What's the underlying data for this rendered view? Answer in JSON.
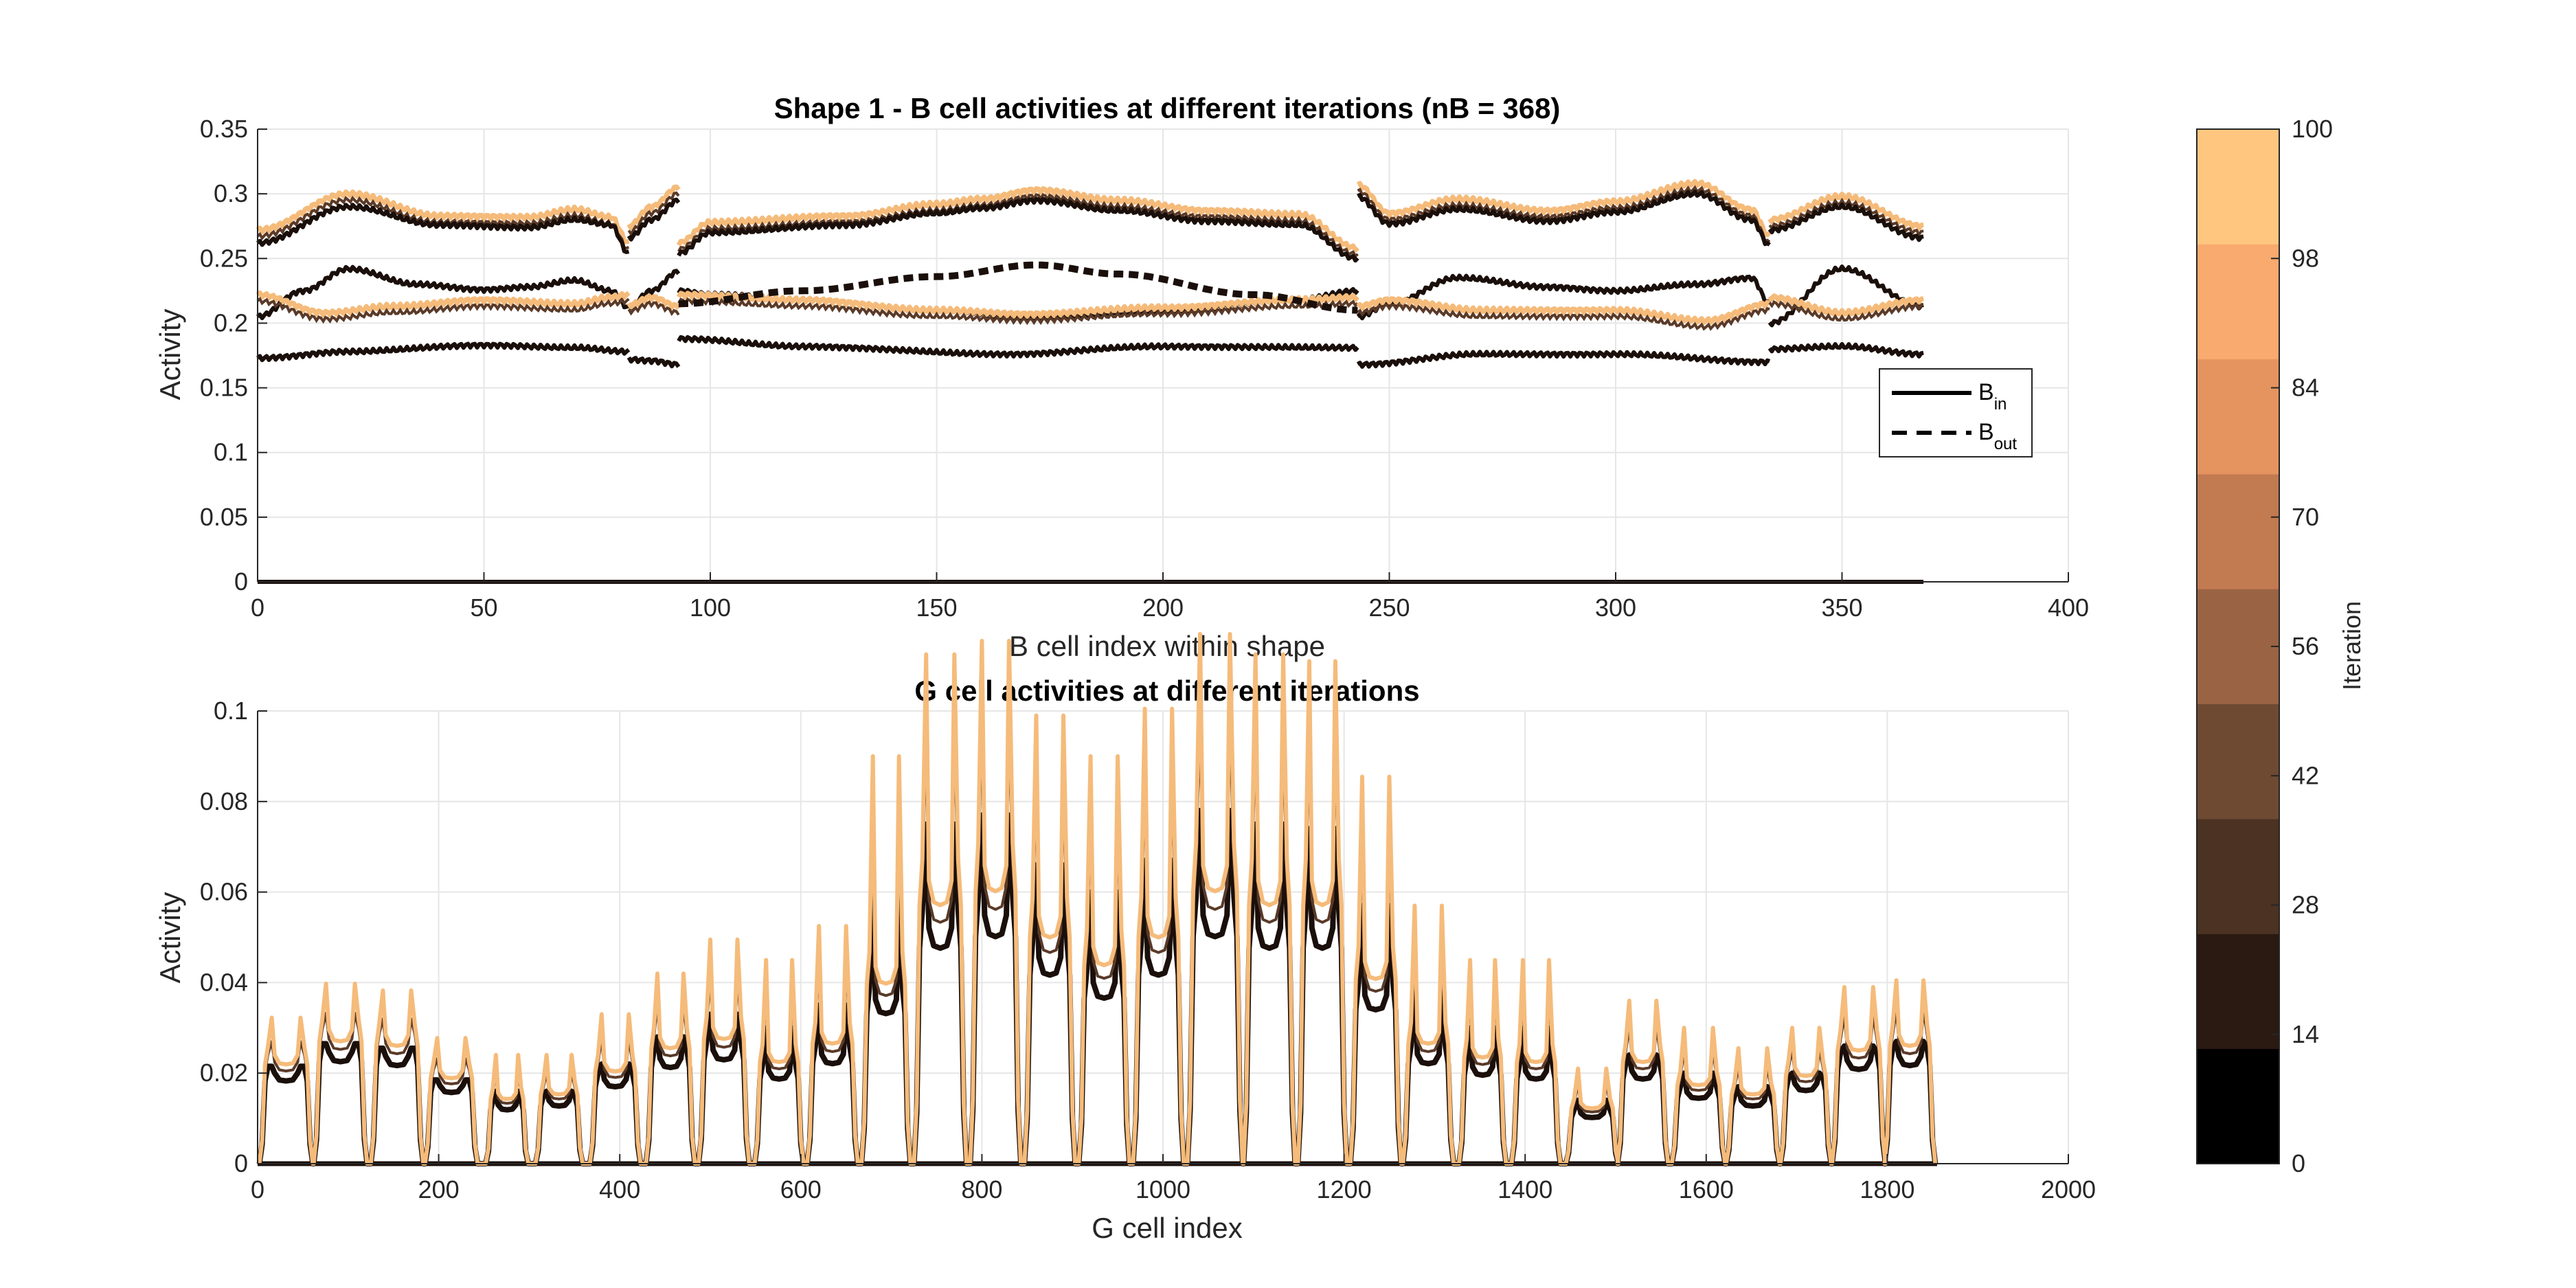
{
  "chart_data": [
    {
      "type": "line",
      "title": "Shape 1 - B cell activities at different iterations (nB = 368)",
      "xlabel": "B cell index within shape",
      "ylabel": "Activity",
      "xlim": [
        0,
        400
      ],
      "ylim": [
        0,
        0.35
      ],
      "xticks": [
        "0",
        "50",
        "100",
        "150",
        "200",
        "250",
        "300",
        "350",
        "400"
      ],
      "yticks": [
        "0",
        "0.05",
        "0.1",
        "0.15",
        "0.2",
        "0.25",
        "0.3",
        "0.35"
      ],
      "grid": true,
      "legend": {
        "placement": "right",
        "entries": [
          {
            "base": "B",
            "sub": "in",
            "style": "solid"
          },
          {
            "base": "B",
            "sub": "out",
            "style": "dashed"
          }
        ]
      },
      "x_breaks": [
        0,
        82,
        93,
        243,
        334,
        368
      ],
      "series": [
        {
          "line": "solid",
          "iteration": 100,
          "segments": [
            {
              "x": [
                0,
                20,
                40,
                60,
                70,
                78,
                82
              ],
              "y": [
                0.272,
                0.3,
                0.283,
                0.282,
                0.288,
                0.282,
                0.262
              ]
            },
            {
              "x": [
                82,
                87,
                93
              ],
              "y": [
                0.275,
                0.29,
                0.305
              ]
            },
            {
              "x": [
                93,
                100,
                130,
                150,
                160,
                172,
                190,
                210,
                230,
                243
              ],
              "y": [
                0.262,
                0.278,
                0.283,
                0.292,
                0.296,
                0.303,
                0.295,
                0.287,
                0.284,
                0.258
              ]
            },
            {
              "x": [
                243,
                250,
                265,
                285,
                300,
                318,
                330,
                334
              ],
              "y": [
                0.307,
                0.285,
                0.296,
                0.287,
                0.294,
                0.308,
                0.288,
                0.267
              ]
            },
            {
              "x": [
                334,
                350,
                368
              ],
              "y": [
                0.28,
                0.298,
                0.275
              ]
            }
          ]
        },
        {
          "line": "solid",
          "iteration": 0,
          "segments": [
            {
              "x": [
                0,
                20,
                40,
                60,
                70,
                78,
                82
              ],
              "y": [
                0.262,
                0.29,
                0.276,
                0.274,
                0.28,
                0.276,
                0.254
              ]
            },
            {
              "x": [
                82,
                87,
                93
              ],
              "y": [
                0.266,
                0.28,
                0.295
              ]
            },
            {
              "x": [
                93,
                100,
                130,
                150,
                160,
                172,
                190,
                210,
                230,
                243
              ],
              "y": [
                0.254,
                0.27,
                0.276,
                0.285,
                0.289,
                0.295,
                0.287,
                0.279,
                0.276,
                0.25
              ]
            },
            {
              "x": [
                243,
                250,
                265,
                285,
                300,
                318,
                330,
                334
              ],
              "y": [
                0.298,
                0.277,
                0.288,
                0.279,
                0.286,
                0.3,
                0.28,
                0.26
              ]
            },
            {
              "x": [
                334,
                350,
                368
              ],
              "y": [
                0.272,
                0.29,
                0.266
              ]
            }
          ]
        },
        {
          "line": "solid",
          "iteration": 0,
          "segments": [
            {
              "x": [
                0,
                10,
                20,
                35,
                50,
                60,
                70,
                78,
                82
              ],
              "y": [
                0.205,
                0.225,
                0.242,
                0.23,
                0.226,
                0.228,
                0.233,
                0.225,
                0.212
              ]
            },
            {
              "x": [
                82,
                87,
                93
              ],
              "y": [
                0.213,
                0.225,
                0.24
              ]
            },
            {
              "x": [
                93,
                100,
                120,
                150,
                170,
                200,
                230,
                243
              ],
              "y": [
                0.225,
                0.222,
                0.218,
                0.21,
                0.205,
                0.21,
                0.218,
                0.225
              ]
            },
            {
              "x": [
                243,
                250,
                265,
                285,
                300,
                318,
                330,
                334
              ],
              "y": [
                0.205,
                0.215,
                0.235,
                0.228,
                0.225,
                0.23,
                0.235,
                0.215
              ]
            },
            {
              "x": [
                334,
                350,
                368
              ],
              "y": [
                0.2,
                0.242,
                0.213
              ]
            }
          ]
        },
        {
          "line": "solid",
          "iteration": 100,
          "segments": [
            {
              "x": [
                0,
                15,
                30,
                50,
                70,
                78,
                82
              ],
              "y": [
                0.222,
                0.208,
                0.213,
                0.218,
                0.215,
                0.22,
                0.222
              ]
            },
            {
              "x": [
                82,
                87,
                93
              ],
              "y": [
                0.214,
                0.22,
                0.213
              ]
            },
            {
              "x": [
                93,
                120,
                150,
                170,
                200,
                230,
                243
              ],
              "y": [
                0.222,
                0.218,
                0.21,
                0.207,
                0.212,
                0.218,
                0.22
              ]
            },
            {
              "x": [
                243,
                250,
                270,
                300,
                320,
                334
              ],
              "y": [
                0.213,
                0.218,
                0.21,
                0.21,
                0.202,
                0.215
              ]
            },
            {
              "x": [
                334,
                350,
                368
              ],
              "y": [
                0.22,
                0.208,
                0.218
              ]
            }
          ]
        },
        {
          "line": "solid",
          "iteration": 0,
          "segments": [
            {
              "x": [
                0,
                20,
                50,
                70,
                82
              ],
              "y": [
                0.173,
                0.178,
                0.183,
                0.181,
                0.178
              ]
            },
            {
              "x": [
                82,
                87,
                93
              ],
              "y": [
                0.172,
                0.171,
                0.168
              ]
            },
            {
              "x": [
                93,
                120,
                165,
                200,
                243
              ],
              "y": [
                0.188,
                0.182,
                0.176,
                0.182,
                0.181
              ]
            },
            {
              "x": [
                243,
                270,
                300,
                334
              ],
              "y": [
                0.168,
                0.176,
                0.176,
                0.17
              ]
            },
            {
              "x": [
                334,
                350,
                368
              ],
              "y": [
                0.18,
                0.182,
                0.176
              ]
            }
          ]
        },
        {
          "line": "dashed",
          "iteration": 0,
          "segments": [
            {
              "x": [
                93,
                120,
                150,
                172,
                190,
                220,
                243
              ],
              "y": [
                0.215,
                0.225,
                0.236,
                0.245,
                0.238,
                0.222,
                0.21
              ]
            }
          ]
        },
        {
          "line": "solid",
          "iteration": 0,
          "segments": [
            {
              "x": [
                0,
                368
              ],
              "y": [
                0,
                0
              ]
            }
          ]
        }
      ]
    },
    {
      "type": "line",
      "title": "G cell activities at different iterations",
      "xlabel": "G cell index",
      "ylabel": "Activity",
      "xlim": [
        0,
        2000
      ],
      "ylim": [
        0,
        0.1
      ],
      "xticks": [
        "0",
        "200",
        "400",
        "600",
        "800",
        "1000",
        "1200",
        "1400",
        "1600",
        "1800",
        "2000"
      ],
      "yticks": [
        "0",
        "0.02",
        "0.04",
        "0.06",
        "0.08",
        "0.1"
      ],
      "grid": true,
      "series": [
        {
          "name": "",
          "iteration": 0,
          "segments": [
            {
              "x": [
                0,
                1855
              ],
              "y": [
                0,
                0
              ]
            }
          ]
        },
        {
          "name": "",
          "iteration": 0,
          "bumps": [
            {
              "x": [
                5,
                58
              ],
              "plateau": 0.0215,
              "peak": 0.0215
            },
            {
              "x": [
                65,
                118
              ],
              "plateau": 0.0265,
              "peak": 0.0265
            },
            {
              "x": [
                128,
                180
              ],
              "plateau": 0.0255,
              "peak": 0.0255
            },
            {
              "x": [
                188,
                240
              ],
              "plateau": 0.0185,
              "peak": 0.0185
            },
            {
              "x": [
                255,
                296
              ],
              "plateau": 0.014,
              "peak": 0.016
            },
            {
              "x": [
                310,
                356
              ],
              "plateau": 0.015,
              "peak": 0.016
            },
            {
              "x": [
                370,
                420
              ],
              "plateau": 0.02,
              "peak": 0.022
            },
            {
              "x": [
                432,
                480
              ],
              "plateau": 0.025,
              "peak": 0.028
            },
            {
              "x": [
                490,
                540
              ],
              "plateau": 0.027,
              "peak": 0.033
            },
            {
              "x": [
                552,
                600
              ],
              "plateau": 0.022,
              "peak": 0.03
            },
            {
              "x": [
                610,
                660
              ],
              "plateau": 0.026,
              "peak": 0.035
            },
            {
              "x": [
                670,
                718
              ],
              "plateau": 0.039,
              "peak": 0.06
            },
            {
              "x": [
                728,
                780
              ],
              "plateau": 0.056,
              "peak": 0.075
            },
            {
              "x": [
                790,
                840
              ],
              "plateau": 0.059,
              "peak": 0.077
            },
            {
              "x": [
                850,
                900
              ],
              "plateau": 0.049,
              "peak": 0.066
            },
            {
              "x": [
                910,
                960
              ],
              "plateau": 0.043,
              "peak": 0.06
            },
            {
              "x": [
                970,
                1020
              ],
              "plateau": 0.049,
              "peak": 0.067
            },
            {
              "x": [
                1030,
                1085
              ],
              "plateau": 0.059,
              "peak": 0.078
            },
            {
              "x": [
                1092,
                1143
              ],
              "plateau": 0.056,
              "peak": 0.075
            },
            {
              "x": [
                1152,
                1200
              ],
              "plateau": 0.056,
              "peak": 0.074
            },
            {
              "x": [
                1210,
                1260
              ],
              "plateau": 0.04,
              "peak": 0.057
            },
            {
              "x": [
                1268,
                1318
              ],
              "plateau": 0.026,
              "peak": 0.038
            },
            {
              "x": [
                1330,
                1376
              ],
              "plateau": 0.023,
              "peak": 0.03
            },
            {
              "x": [
                1388,
                1436
              ],
              "plateau": 0.022,
              "peak": 0.03
            },
            {
              "x": [
                1448,
                1500
              ],
              "plateau": 0.012,
              "peak": 0.014
            },
            {
              "x": [
                1505,
                1555
              ],
              "plateau": 0.022,
              "peak": 0.024
            },
            {
              "x": [
                1565,
                1618
              ],
              "plateau": 0.017,
              "peak": 0.02
            },
            {
              "x": [
                1625,
                1678
              ],
              "plateau": 0.015,
              "peak": 0.017
            },
            {
              "x": [
                1685,
                1735
              ],
              "plateau": 0.019,
              "peak": 0.02
            },
            {
              "x": [
                1742,
                1795
              ],
              "plateau": 0.0245,
              "peak": 0.026
            },
            {
              "x": [
                1800,
                1850
              ],
              "plateau": 0.0255,
              "peak": 0.027
            }
          ]
        },
        {
          "name": "",
          "iteration": 100,
          "scale": 1.2,
          "peak_boost": 1.25
        }
      ]
    }
  ],
  "colorbar": {
    "label": "Iteration",
    "ticks": [
      "0",
      "14",
      "28",
      "42",
      "56",
      "70",
      "84",
      "98",
      "100"
    ],
    "colors": [
      "#000000",
      "#2a1a12",
      "#4c3222",
      "#6f4a33",
      "#9a6444",
      "#c27a51",
      "#e59460",
      "#f9aa6e",
      "#ffc680"
    ]
  },
  "colors": {
    "early": "#1a0f0a",
    "late": "#f5bb7a",
    "mid": "#5a3a28"
  }
}
